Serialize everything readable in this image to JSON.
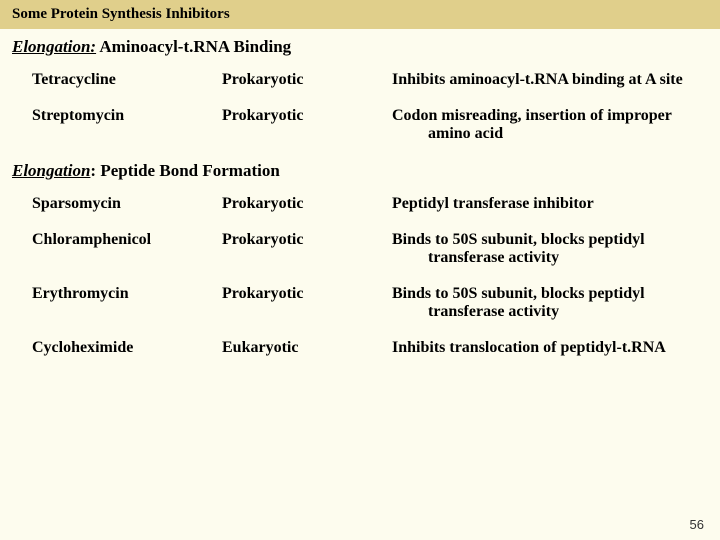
{
  "header": "Some Protein Synthesis Inhibitors",
  "section1": {
    "em": "Elongation:",
    "rest": " Aminoacyl-t.RNA Binding"
  },
  "rows1": [
    {
      "c1": "Tetracycline",
      "c2": "Prokaryotic",
      "c3": "Inhibits aminoacyl-t.RNA binding at A site"
    },
    {
      "c1": "Streptomycin",
      "c2": "Prokaryotic",
      "c3": "Codon misreading, insertion of improper amino acid"
    }
  ],
  "section2": {
    "em": "Elongation",
    "rest": ": Peptide Bond Formation"
  },
  "rows2": [
    {
      "c1": "Sparsomycin",
      "c2": "Prokaryotic",
      "c3": "Peptidyl transferase inhibitor"
    },
    {
      "c1": "Chloramphenicol",
      "c2": "Prokaryotic",
      "c3": "Binds to 50S subunit, blocks peptidyl transferase activity"
    },
    {
      "c1": "Erythromycin",
      "c2": "Prokaryotic",
      "c3": "Binds to 50S subunit, blocks peptidyl transferase activity"
    },
    {
      "c1": "Cycloheximide",
      "c2": "Eukaryotic",
      "c3": "Inhibits translocation of peptidyl-t.RNA"
    }
  ],
  "pageNum": "56"
}
